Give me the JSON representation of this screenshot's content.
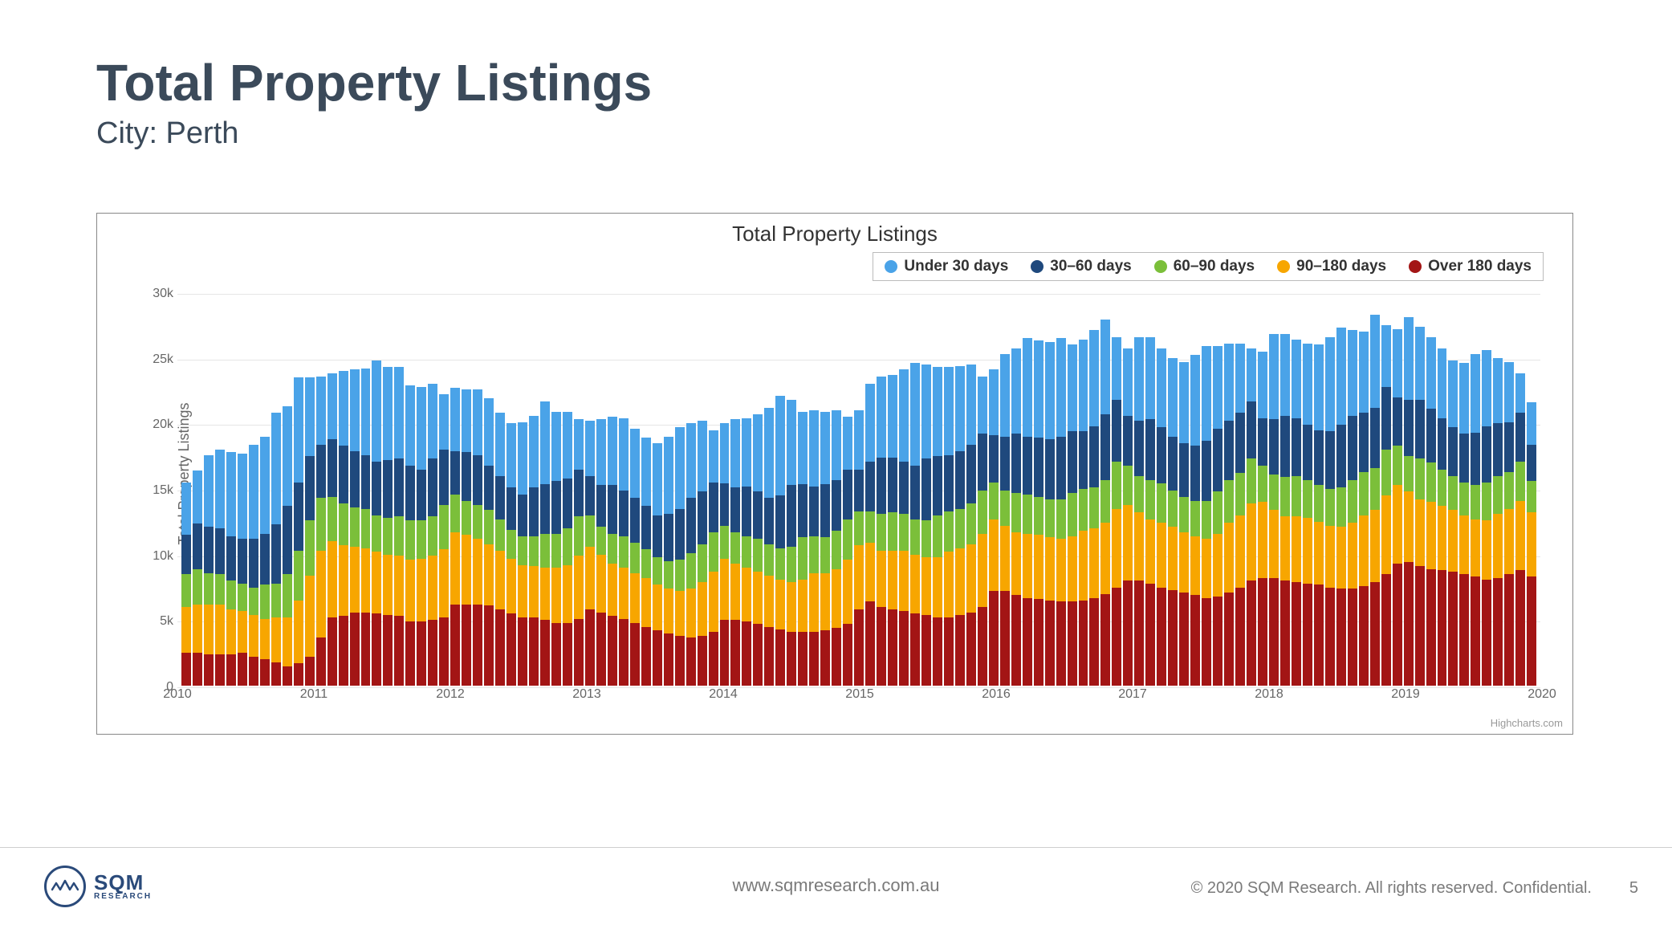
{
  "header": {
    "title": "Total Property Listings",
    "subtitle": "City: Perth"
  },
  "footer": {
    "brand_main": "SQM",
    "brand_sub": "RESEARCH",
    "url": "www.sqmresearch.com.au",
    "copyright": "© 2020 SQM Research. All rights reserved. Confidential.",
    "page_number": "5"
  },
  "chart": {
    "type": "stacked-bar",
    "title": "Total Property Listings",
    "ylabel": "Total Property Listings",
    "credit": "Highcharts.com",
    "title_fontsize": 26,
    "label_fontsize": 18,
    "background_color": "#ffffff",
    "grid_color": "#e6e6e6",
    "ylim": [
      0,
      30000
    ],
    "ytick_step": 5000,
    "yticks": [
      "0",
      "5k",
      "10k",
      "15k",
      "20k",
      "25k",
      "30k"
    ],
    "x_year_labels": [
      "2010",
      "2011",
      "2012",
      "2013",
      "2014",
      "2015",
      "2016",
      "2017",
      "2018",
      "2019",
      "2020"
    ],
    "series_order": [
      "over180",
      "d90_180",
      "d60_90",
      "d30_60",
      "under30"
    ],
    "series": {
      "under30": {
        "label": "Under 30 days",
        "color": "#4aa3e8"
      },
      "d30_60": {
        "label": "30–60 days",
        "color": "#1f497d"
      },
      "d60_90": {
        "label": "60–90 days",
        "color": "#7bbf3a"
      },
      "d90_180": {
        "label": "90–180 days",
        "color": "#f7a600"
      },
      "over180": {
        "label": "Over 180 days",
        "color": "#a31515"
      }
    },
    "n_months": 121,
    "data": [
      {
        "over180": 2500,
        "d90_180": 3500,
        "d60_90": 2500,
        "d30_60": 3000,
        "under30": 4000
      },
      {
        "over180": 2500,
        "d90_180": 3700,
        "d60_90": 2700,
        "d30_60": 3500,
        "under30": 4000
      },
      {
        "over180": 2400,
        "d90_180": 3800,
        "d60_90": 2400,
        "d30_60": 3500,
        "under30": 5500
      },
      {
        "over180": 2400,
        "d90_180": 3800,
        "d60_90": 2300,
        "d30_60": 3500,
        "under30": 6000
      },
      {
        "over180": 2400,
        "d90_180": 3400,
        "d60_90": 2200,
        "d30_60": 3400,
        "under30": 6400
      },
      {
        "over180": 2500,
        "d90_180": 3200,
        "d60_90": 2100,
        "d30_60": 3400,
        "under30": 6500
      },
      {
        "over180": 2200,
        "d90_180": 3200,
        "d60_90": 2100,
        "d30_60": 3700,
        "under30": 7200
      },
      {
        "over180": 2000,
        "d90_180": 3100,
        "d60_90": 2600,
        "d30_60": 3900,
        "under30": 7400
      },
      {
        "over180": 1800,
        "d90_180": 3400,
        "d60_90": 2600,
        "d30_60": 4500,
        "under30": 8500
      },
      {
        "over180": 1500,
        "d90_180": 3700,
        "d60_90": 3300,
        "d30_60": 5200,
        "under30": 7600
      },
      {
        "over180": 1700,
        "d90_180": 4800,
        "d60_90": 3800,
        "d30_60": 5200,
        "under30": 8000
      },
      {
        "over180": 2200,
        "d90_180": 6200,
        "d60_90": 4200,
        "d30_60": 4900,
        "under30": 6000
      },
      {
        "over180": 3700,
        "d90_180": 6600,
        "d60_90": 4000,
        "d30_60": 4100,
        "under30": 5200
      },
      {
        "over180": 5200,
        "d90_180": 5800,
        "d60_90": 3400,
        "d30_60": 4400,
        "under30": 5000
      },
      {
        "over180": 5300,
        "d90_180": 5400,
        "d60_90": 3200,
        "d30_60": 4400,
        "under30": 5700
      },
      {
        "over180": 5600,
        "d90_180": 5000,
        "d60_90": 3000,
        "d30_60": 4300,
        "under30": 6200
      },
      {
        "over180": 5600,
        "d90_180": 4900,
        "d60_90": 3000,
        "d30_60": 4100,
        "under30": 6600
      },
      {
        "over180": 5500,
        "d90_180": 4700,
        "d60_90": 2800,
        "d30_60": 4100,
        "under30": 7700
      },
      {
        "over180": 5400,
        "d90_180": 4600,
        "d60_90": 2800,
        "d30_60": 4400,
        "under30": 7100
      },
      {
        "over180": 5300,
        "d90_180": 4600,
        "d60_90": 3000,
        "d30_60": 4400,
        "under30": 7000
      },
      {
        "over180": 4900,
        "d90_180": 4700,
        "d60_90": 3000,
        "d30_60": 4200,
        "under30": 6100
      },
      {
        "over180": 4900,
        "d90_180": 4800,
        "d60_90": 2900,
        "d30_60": 3900,
        "under30": 6300
      },
      {
        "over180": 5000,
        "d90_180": 4900,
        "d60_90": 3000,
        "d30_60": 4400,
        "under30": 5700
      },
      {
        "over180": 5200,
        "d90_180": 5200,
        "d60_90": 3400,
        "d30_60": 4200,
        "under30": 4200
      },
      {
        "over180": 6200,
        "d90_180": 5500,
        "d60_90": 2900,
        "d30_60": 3300,
        "under30": 4800
      },
      {
        "over180": 6200,
        "d90_180": 5300,
        "d60_90": 2600,
        "d30_60": 3700,
        "under30": 4800
      },
      {
        "over180": 6200,
        "d90_180": 5000,
        "d60_90": 2600,
        "d30_60": 3800,
        "under30": 5000
      },
      {
        "over180": 6100,
        "d90_180": 4700,
        "d60_90": 2600,
        "d30_60": 3400,
        "under30": 5100
      },
      {
        "over180": 5800,
        "d90_180": 4500,
        "d60_90": 2400,
        "d30_60": 3300,
        "under30": 4800
      },
      {
        "over180": 5500,
        "d90_180": 4200,
        "d60_90": 2200,
        "d30_60": 3200,
        "under30": 4900
      },
      {
        "over180": 5200,
        "d90_180": 4000,
        "d60_90": 2200,
        "d30_60": 3200,
        "under30": 5500
      },
      {
        "over180": 5200,
        "d90_180": 3900,
        "d60_90": 2300,
        "d30_60": 3700,
        "under30": 5500
      },
      {
        "over180": 5000,
        "d90_180": 4000,
        "d60_90": 2600,
        "d30_60": 3800,
        "under30": 6300
      },
      {
        "over180": 4800,
        "d90_180": 4200,
        "d60_90": 2600,
        "d30_60": 4000,
        "under30": 5300
      },
      {
        "over180": 4800,
        "d90_180": 4400,
        "d60_90": 2800,
        "d30_60": 3800,
        "under30": 5100
      },
      {
        "over180": 5100,
        "d90_180": 4800,
        "d60_90": 3000,
        "d30_60": 3600,
        "under30": 3800
      },
      {
        "over180": 5800,
        "d90_180": 4800,
        "d60_90": 2400,
        "d30_60": 3000,
        "under30": 4200
      },
      {
        "over180": 5600,
        "d90_180": 4400,
        "d60_90": 2100,
        "d30_60": 3200,
        "under30": 5000
      },
      {
        "over180": 5300,
        "d90_180": 4000,
        "d60_90": 2300,
        "d30_60": 3700,
        "under30": 5200
      },
      {
        "over180": 5100,
        "d90_180": 3900,
        "d60_90": 2400,
        "d30_60": 3500,
        "under30": 5500
      },
      {
        "over180": 4800,
        "d90_180": 3800,
        "d60_90": 2300,
        "d30_60": 3400,
        "under30": 5300
      },
      {
        "over180": 4500,
        "d90_180": 3700,
        "d60_90": 2200,
        "d30_60": 3300,
        "under30": 5200
      },
      {
        "over180": 4200,
        "d90_180": 3500,
        "d60_90": 2100,
        "d30_60": 3200,
        "under30": 5500
      },
      {
        "over180": 4000,
        "d90_180": 3400,
        "d60_90": 2100,
        "d30_60": 3600,
        "under30": 5900
      },
      {
        "over180": 3800,
        "d90_180": 3400,
        "d60_90": 2400,
        "d30_60": 3900,
        "under30": 6200
      },
      {
        "over180": 3700,
        "d90_180": 3700,
        "d60_90": 2700,
        "d30_60": 4200,
        "under30": 5700
      },
      {
        "over180": 3800,
        "d90_180": 4100,
        "d60_90": 2900,
        "d30_60": 4000,
        "under30": 5400
      },
      {
        "over180": 4100,
        "d90_180": 4600,
        "d60_90": 3000,
        "d30_60": 3800,
        "under30": 4000
      },
      {
        "over180": 5000,
        "d90_180": 4700,
        "d60_90": 2500,
        "d30_60": 3200,
        "under30": 4600
      },
      {
        "over180": 5000,
        "d90_180": 4300,
        "d60_90": 2400,
        "d30_60": 3400,
        "under30": 5200
      },
      {
        "over180": 4900,
        "d90_180": 4100,
        "d60_90": 2400,
        "d30_60": 3800,
        "under30": 5200
      },
      {
        "over180": 4700,
        "d90_180": 4000,
        "d60_90": 2500,
        "d30_60": 3600,
        "under30": 5900
      },
      {
        "over180": 4500,
        "d90_180": 3900,
        "d60_90": 2400,
        "d30_60": 3500,
        "under30": 6900
      },
      {
        "over180": 4300,
        "d90_180": 3800,
        "d60_90": 2400,
        "d30_60": 4000,
        "under30": 7600
      },
      {
        "over180": 4100,
        "d90_180": 3800,
        "d60_90": 2700,
        "d30_60": 4700,
        "under30": 6500
      },
      {
        "over180": 4100,
        "d90_180": 4000,
        "d60_90": 3200,
        "d30_60": 4100,
        "under30": 5500
      },
      {
        "over180": 4100,
        "d90_180": 4500,
        "d60_90": 2800,
        "d30_60": 3800,
        "under30": 5800
      },
      {
        "over180": 4200,
        "d90_180": 4400,
        "d60_90": 2700,
        "d30_60": 4100,
        "under30": 5500
      },
      {
        "over180": 4400,
        "d90_180": 4500,
        "d60_90": 2900,
        "d30_60": 3900,
        "under30": 5300
      },
      {
        "over180": 4700,
        "d90_180": 4900,
        "d60_90": 3100,
        "d30_60": 3800,
        "under30": 4000
      },
      {
        "over180": 5800,
        "d90_180": 4900,
        "d60_90": 2600,
        "d30_60": 3200,
        "under30": 4500
      },
      {
        "over180": 6400,
        "d90_180": 4500,
        "d60_90": 2400,
        "d30_60": 3800,
        "under30": 5900
      },
      {
        "over180": 6000,
        "d90_180": 4300,
        "d60_90": 2800,
        "d30_60": 4300,
        "under30": 6200
      },
      {
        "over180": 5800,
        "d90_180": 4500,
        "d60_90": 2900,
        "d30_60": 4200,
        "under30": 6300
      },
      {
        "over180": 5700,
        "d90_180": 4600,
        "d60_90": 2800,
        "d30_60": 4000,
        "under30": 7000
      },
      {
        "over180": 5500,
        "d90_180": 4500,
        "d60_90": 2700,
        "d30_60": 4100,
        "under30": 7800
      },
      {
        "over180": 5400,
        "d90_180": 4400,
        "d60_90": 2800,
        "d30_60": 4700,
        "under30": 7200
      },
      {
        "over180": 5200,
        "d90_180": 4600,
        "d60_90": 3200,
        "d30_60": 4500,
        "under30": 6800
      },
      {
        "over180": 5200,
        "d90_180": 5000,
        "d60_90": 3100,
        "d30_60": 4300,
        "under30": 6700
      },
      {
        "over180": 5400,
        "d90_180": 5100,
        "d60_90": 3000,
        "d30_60": 4400,
        "under30": 6500
      },
      {
        "over180": 5600,
        "d90_180": 5200,
        "d60_90": 3100,
        "d30_60": 4500,
        "under30": 6100
      },
      {
        "over180": 6000,
        "d90_180": 5600,
        "d60_90": 3300,
        "d30_60": 4300,
        "under30": 4400
      },
      {
        "over180": 7200,
        "d90_180": 5500,
        "d60_90": 2800,
        "d30_60": 3600,
        "under30": 5000
      },
      {
        "over180": 7200,
        "d90_180": 5000,
        "d60_90": 2700,
        "d30_60": 4100,
        "under30": 6300
      },
      {
        "over180": 6900,
        "d90_180": 4800,
        "d60_90": 3000,
        "d30_60": 4500,
        "under30": 6500
      },
      {
        "over180": 6700,
        "d90_180": 4900,
        "d60_90": 3000,
        "d30_60": 4400,
        "under30": 7500
      },
      {
        "over180": 6600,
        "d90_180": 4900,
        "d60_90": 2900,
        "d30_60": 4500,
        "under30": 7400
      },
      {
        "over180": 6500,
        "d90_180": 4800,
        "d60_90": 2900,
        "d30_60": 4600,
        "under30": 7400
      },
      {
        "over180": 6400,
        "d90_180": 4800,
        "d60_90": 3000,
        "d30_60": 4800,
        "under30": 7500
      },
      {
        "over180": 6400,
        "d90_180": 5000,
        "d60_90": 3300,
        "d30_60": 4700,
        "under30": 6600
      },
      {
        "over180": 6500,
        "d90_180": 5300,
        "d60_90": 3200,
        "d30_60": 4400,
        "under30": 7000
      },
      {
        "over180": 6700,
        "d90_180": 5300,
        "d60_90": 3100,
        "d30_60": 4700,
        "under30": 7300
      },
      {
        "over180": 7000,
        "d90_180": 5400,
        "d60_90": 3300,
        "d30_60": 5000,
        "under30": 7200
      },
      {
        "over180": 7500,
        "d90_180": 6000,
        "d60_90": 3600,
        "d30_60": 4700,
        "under30": 4800
      },
      {
        "over180": 8000,
        "d90_180": 5800,
        "d60_90": 3000,
        "d30_60": 3800,
        "under30": 5100
      },
      {
        "over180": 8000,
        "d90_180": 5200,
        "d60_90": 2800,
        "d30_60": 4200,
        "under30": 6400
      },
      {
        "over180": 7800,
        "d90_180": 4900,
        "d60_90": 3000,
        "d30_60": 4600,
        "under30": 6300
      },
      {
        "over180": 7500,
        "d90_180": 4900,
        "d60_90": 3000,
        "d30_60": 4300,
        "under30": 6000
      },
      {
        "over180": 7300,
        "d90_180": 4800,
        "d60_90": 2800,
        "d30_60": 4100,
        "under30": 6000
      },
      {
        "over180": 7100,
        "d90_180": 4600,
        "d60_90": 2700,
        "d30_60": 4100,
        "under30": 6200
      },
      {
        "over180": 6900,
        "d90_180": 4500,
        "d60_90": 2700,
        "d30_60": 4200,
        "under30": 6900
      },
      {
        "over180": 6700,
        "d90_180": 4500,
        "d60_90": 2900,
        "d30_60": 4600,
        "under30": 7200
      },
      {
        "over180": 6800,
        "d90_180": 4800,
        "d60_90": 3200,
        "d30_60": 4800,
        "under30": 6300
      },
      {
        "over180": 7100,
        "d90_180": 5300,
        "d60_90": 3300,
        "d30_60": 4500,
        "under30": 5900
      },
      {
        "over180": 7500,
        "d90_180": 5500,
        "d60_90": 3200,
        "d30_60": 4600,
        "under30": 5300
      },
      {
        "over180": 8000,
        "d90_180": 5900,
        "d60_90": 3400,
        "d30_60": 4400,
        "under30": 4000
      },
      {
        "over180": 8200,
        "d90_180": 5800,
        "d60_90": 2800,
        "d30_60": 3600,
        "under30": 5100
      },
      {
        "over180": 8200,
        "d90_180": 5200,
        "d60_90": 2700,
        "d30_60": 4200,
        "under30": 6500
      },
      {
        "over180": 8000,
        "d90_180": 4900,
        "d60_90": 3000,
        "d30_60": 4700,
        "under30": 6200
      },
      {
        "over180": 7900,
        "d90_180": 5000,
        "d60_90": 3100,
        "d30_60": 4400,
        "under30": 6000
      },
      {
        "over180": 7800,
        "d90_180": 5000,
        "d60_90": 2900,
        "d30_60": 4200,
        "under30": 6200
      },
      {
        "over180": 7700,
        "d90_180": 4800,
        "d60_90": 2800,
        "d30_60": 4200,
        "under30": 6500
      },
      {
        "over180": 7500,
        "d90_180": 4700,
        "d60_90": 2800,
        "d30_60": 4400,
        "under30": 7200
      },
      {
        "over180": 7400,
        "d90_180": 4700,
        "d60_90": 3000,
        "d30_60": 4800,
        "under30": 7400
      },
      {
        "over180": 7400,
        "d90_180": 5000,
        "d60_90": 3300,
        "d30_60": 4900,
        "under30": 6500
      },
      {
        "over180": 7600,
        "d90_180": 5400,
        "d60_90": 3300,
        "d30_60": 4500,
        "under30": 6200
      },
      {
        "over180": 7900,
        "d90_180": 5500,
        "d60_90": 3200,
        "d30_60": 4600,
        "under30": 7100
      },
      {
        "over180": 8500,
        "d90_180": 6000,
        "d60_90": 3500,
        "d30_60": 4800,
        "under30": 4700
      },
      {
        "over180": 9300,
        "d90_180": 6000,
        "d60_90": 3000,
        "d30_60": 3700,
        "under30": 5200
      },
      {
        "over180": 9400,
        "d90_180": 5400,
        "d60_90": 2700,
        "d30_60": 4300,
        "under30": 6300
      },
      {
        "over180": 9100,
        "d90_180": 5100,
        "d60_90": 3100,
        "d30_60": 4500,
        "under30": 5600
      },
      {
        "over180": 8900,
        "d90_180": 5100,
        "d60_90": 3000,
        "d30_60": 4100,
        "under30": 5500
      },
      {
        "over180": 8800,
        "d90_180": 4900,
        "d60_90": 2800,
        "d30_60": 3900,
        "under30": 5300
      },
      {
        "over180": 8700,
        "d90_180": 4700,
        "d60_90": 2600,
        "d30_60": 3700,
        "under30": 5100
      },
      {
        "over180": 8500,
        "d90_180": 4500,
        "d60_90": 2500,
        "d30_60": 3700,
        "under30": 5400
      },
      {
        "over180": 8300,
        "d90_180": 4400,
        "d60_90": 2600,
        "d30_60": 4000,
        "under30": 6000
      },
      {
        "over180": 8100,
        "d90_180": 4500,
        "d60_90": 2900,
        "d30_60": 4300,
        "under30": 5800
      },
      {
        "over180": 8200,
        "d90_180": 4900,
        "d60_90": 2900,
        "d30_60": 4000,
        "under30": 5000
      },
      {
        "over180": 8500,
        "d90_180": 5000,
        "d60_90": 2800,
        "d30_60": 3800,
        "under30": 4600
      },
      {
        "over180": 8800,
        "d90_180": 5300,
        "d60_90": 3000,
        "d30_60": 3700,
        "under30": 3000
      },
      {
        "over180": 8300,
        "d90_180": 4900,
        "d60_90": 2400,
        "d30_60": 2800,
        "under30": 3200
      }
    ]
  }
}
